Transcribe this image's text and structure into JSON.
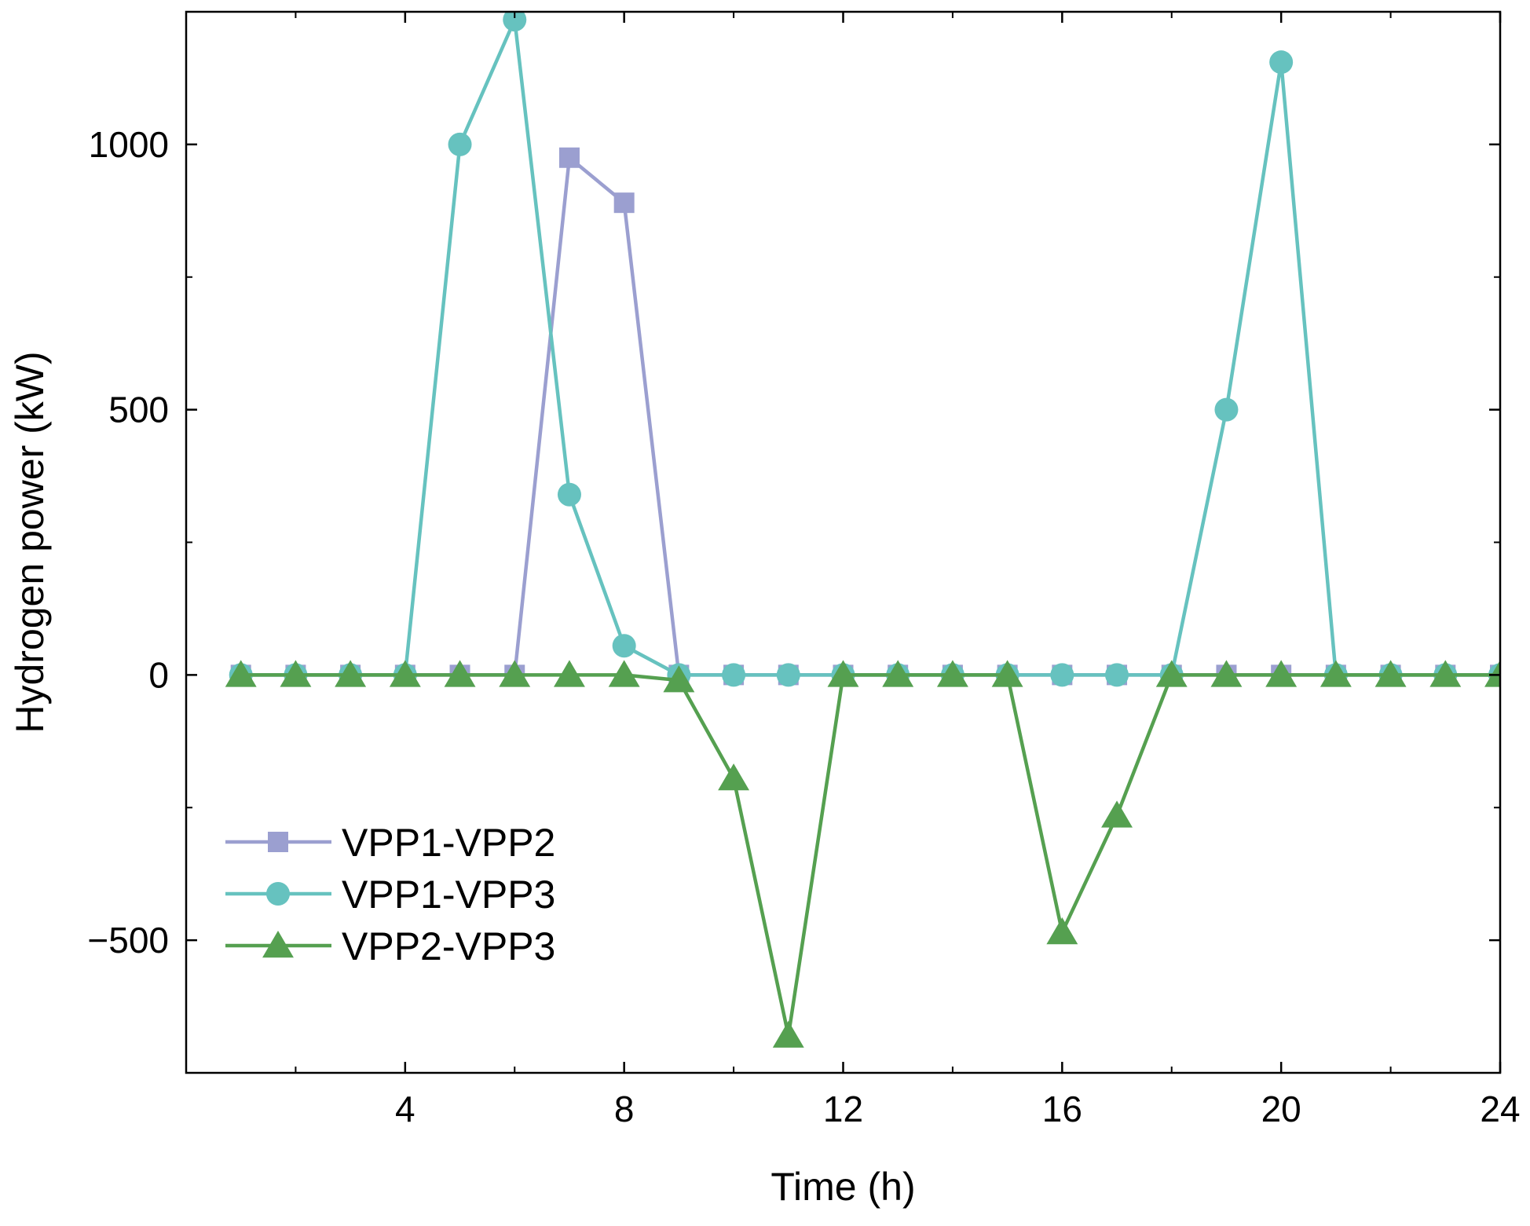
{
  "chart_data": {
    "type": "line",
    "title": "",
    "xlabel": "Time (h)",
    "ylabel": "Hydrogen power (kW)",
    "xlim": [
      0,
      24
    ],
    "ylim": [
      -750,
      1250
    ],
    "xticks": [
      4,
      8,
      12,
      16,
      20,
      24
    ],
    "xtick_labels": [
      "4",
      "8",
      "12",
      "16",
      "20",
      "24"
    ],
    "xminor": [
      2,
      6,
      10,
      14,
      18,
      22
    ],
    "yticks": [
      -500,
      0,
      500,
      1000
    ],
    "ytick_labels": [
      "−500",
      "0",
      "500",
      "1000"
    ],
    "yminor": [
      -250,
      250,
      750
    ],
    "grid": false,
    "legend_position": "bottom-left",
    "x": [
      1,
      2,
      3,
      4,
      5,
      6,
      7,
      8,
      9,
      10,
      11,
      12,
      13,
      14,
      15,
      16,
      17,
      18,
      19,
      20,
      21,
      22,
      23,
      24
    ],
    "series": [
      {
        "name": "VPP1-VPP2",
        "color": "#9b9fd0",
        "marker": "square",
        "values": [
          0,
          0,
          0,
          0,
          0,
          0,
          975,
          890,
          0,
          0,
          0,
          0,
          0,
          0,
          0,
          0,
          0,
          0,
          0,
          0,
          0,
          0,
          0,
          0
        ]
      },
      {
        "name": "VPP1-VPP3",
        "color": "#66c2bf",
        "marker": "circle",
        "values": [
          0,
          0,
          0,
          0,
          1000,
          1235,
          340,
          55,
          0,
          0,
          0,
          0,
          0,
          0,
          0,
          0,
          0,
          0,
          500,
          1155,
          0,
          0,
          0,
          0
        ]
      },
      {
        "name": "VPP2-VPP3",
        "color": "#55a050",
        "marker": "triangle",
        "values": [
          0,
          0,
          0,
          0,
          0,
          0,
          0,
          0,
          -10,
          -195,
          -680,
          0,
          0,
          0,
          0,
          -485,
          -265,
          0,
          0,
          0,
          0,
          0,
          0,
          0
        ]
      }
    ]
  }
}
